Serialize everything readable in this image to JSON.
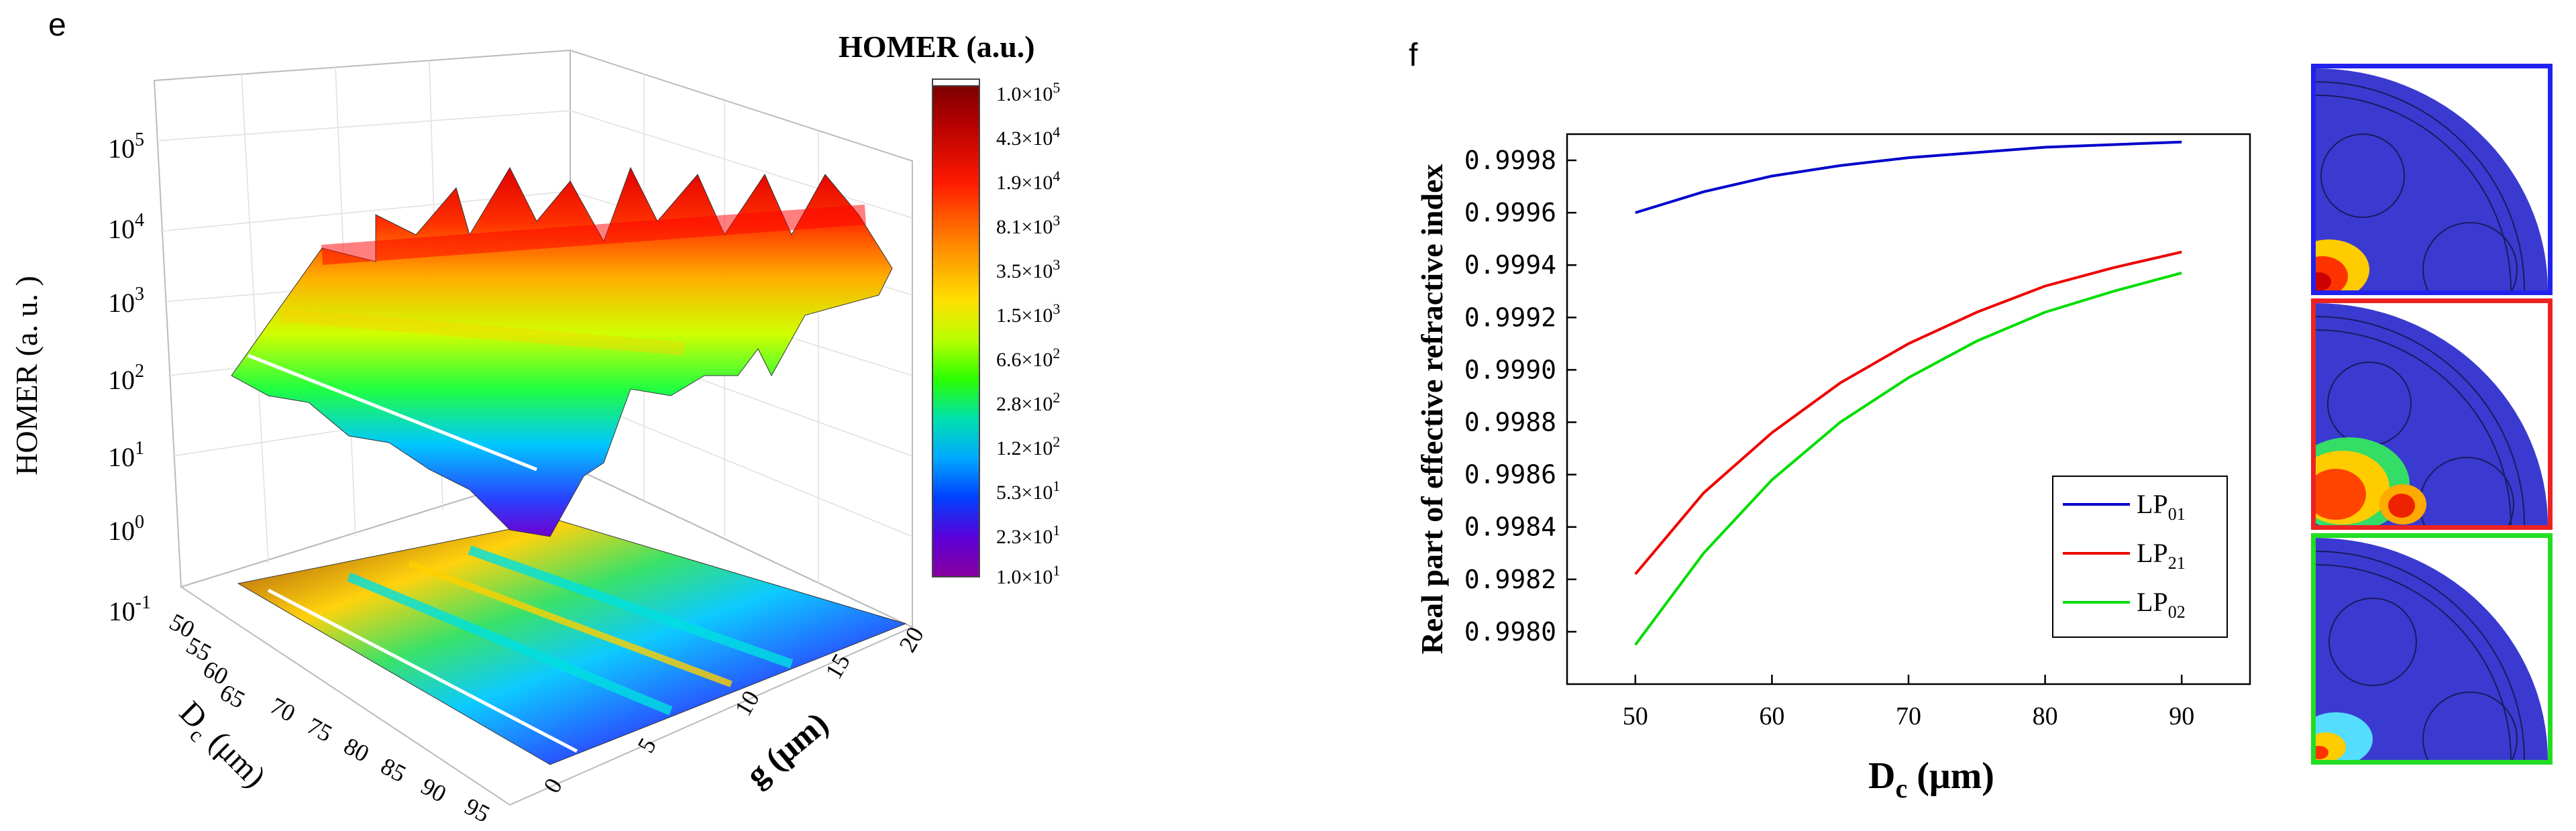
{
  "panel_e": {
    "label": "e",
    "zlabel": "HOMER (a. u. )",
    "xlabel_main": "D",
    "xlabel_sub": "c",
    "xlabel_unit": "(μm)",
    "ylabel": "g (μm)",
    "z_ticks": [
      {
        "b": "10",
        "e": "5"
      },
      {
        "b": "10",
        "e": "4"
      },
      {
        "b": "10",
        "e": "3"
      },
      {
        "b": "10",
        "e": "2"
      },
      {
        "b": "10",
        "e": "1"
      },
      {
        "b": "10",
        "e": "0"
      },
      {
        "b": "10",
        "e": "-1"
      }
    ],
    "dc_ticks": [
      "50",
      "55",
      "60",
      "65",
      "70",
      "75",
      "80",
      "85",
      "90",
      "95"
    ],
    "g_ticks": [
      "0",
      "5",
      "10",
      "15",
      "20"
    ],
    "colorbar": {
      "title": "HOMER (a.u.)",
      "labels": [
        {
          "m": "1.0",
          "e": "5"
        },
        {
          "m": "4.3",
          "e": "4"
        },
        {
          "m": "1.9",
          "e": "4"
        },
        {
          "m": "8.1",
          "e": "3"
        },
        {
          "m": "3.5",
          "e": "3"
        },
        {
          "m": "1.5",
          "e": "3"
        },
        {
          "m": "6.6",
          "e": "2"
        },
        {
          "m": "2.8",
          "e": "2"
        },
        {
          "m": "1.2",
          "e": "2"
        },
        {
          "m": "5.3",
          "e": "1"
        },
        {
          "m": "2.3",
          "e": "1"
        },
        {
          "m": "1.0",
          "e": "1"
        }
      ],
      "colors": [
        "#7a0000",
        "#b30000",
        "#e60000",
        "#ff2a00",
        "#ff7a00",
        "#ffd000",
        "#c8ff00",
        "#33ff00",
        "#00e5a0",
        "#00b4ff",
        "#0050ff",
        "#2a00c8",
        "#7000d0",
        "#8a00a8"
      ]
    }
  },
  "chart_data": [
    {
      "type": "surface3d",
      "title": "HOMER (a.u.)",
      "xlabel": "Dc (μm)",
      "ylabel": "g (μm)",
      "zlabel": "HOMER (a. u. )",
      "z_scale": "log",
      "xlim": [
        50,
        95
      ],
      "ylim": [
        0,
        20
      ],
      "zlim": [
        0.1,
        100000
      ],
      "color_range": [
        10,
        100000
      ]
    },
    {
      "type": "line",
      "title": "",
      "xlabel": "Dc (μm)",
      "ylabel": "Real part of effective refractive index",
      "xlim": [
        45,
        95
      ],
      "ylim": [
        0.9978,
        0.9999
      ],
      "x_ticks": [
        50,
        60,
        70,
        80,
        90
      ],
      "y_ticks": [
        "0.9980",
        "0.9982",
        "0.9984",
        "0.9986",
        "0.9988",
        "0.9990",
        "0.9992",
        "0.9994",
        "0.9996",
        "0.9998"
      ],
      "legend_position": "bottom-right",
      "x": [
        50,
        55,
        60,
        65,
        70,
        75,
        80,
        85,
        90
      ],
      "series": [
        {
          "name": "LP01",
          "color": "#0000cc",
          "values": [
            0.9996,
            0.99968,
            0.99974,
            0.99978,
            0.99981,
            0.99983,
            0.99985,
            0.99986,
            0.99987
          ]
        },
        {
          "name": "LP21",
          "color": "#ee0000",
          "values": [
            0.99822,
            0.99853,
            0.99876,
            0.99895,
            0.9991,
            0.99922,
            0.99932,
            0.99939,
            0.99945
          ]
        },
        {
          "name": "LP02",
          "color": "#00dd00",
          "values": [
            0.99795,
            0.9983,
            0.99858,
            0.9988,
            0.99897,
            0.99911,
            0.99922,
            0.9993,
            0.99937
          ]
        }
      ]
    }
  ],
  "panel_f": {
    "label": "f",
    "ylabel": "Real part of effective refractive index",
    "xlabel_main": "D",
    "xlabel_sub": "c",
    "xlabel_unit": " (μm)",
    "legend": [
      {
        "main": "LP",
        "sub": "01",
        "color": "#0000cc"
      },
      {
        "main": "LP",
        "sub": "21",
        "color": "#ee0000"
      },
      {
        "main": "LP",
        "sub": "02",
        "color": "#00dd00"
      }
    ],
    "mode_images": [
      {
        "name": "LP01 mode",
        "border": "#2222ee"
      },
      {
        "name": "LP21 mode",
        "border": "#ee2222"
      },
      {
        "name": "LP02 mode",
        "border": "#22dd22"
      }
    ]
  }
}
